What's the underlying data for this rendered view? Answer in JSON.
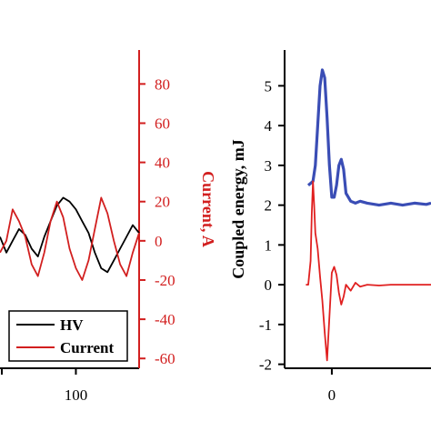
{
  "colors": {
    "hv": "#000000",
    "current": "#d21f1f",
    "coupled_energy": "#3a4db5",
    "second_trace": "#e02020",
    "axis_black": "#000000"
  },
  "chart_data": [
    {
      "type": "line",
      "panel": "left",
      "right_axis": {
        "label": "Current, A",
        "ylim": [
          -65,
          95
        ],
        "ticks": [
          80,
          60,
          40,
          20,
          0,
          -20,
          -40,
          -60
        ],
        "tick_labels": [
          "80",
          "60",
          "40",
          "20",
          "0",
          "-20",
          "-40",
          "-60"
        ],
        "color": "#d21f1f"
      },
      "x_tick_labels": [
        "100"
      ],
      "xlim": [
        40,
        150
      ],
      "legend": {
        "placement": "bottom-right",
        "entries": [
          "HV",
          "Current"
        ]
      },
      "series": [
        {
          "name": "HV",
          "color": "#000000",
          "x": [
            40,
            45,
            50,
            55,
            60,
            65,
            70,
            75,
            80,
            85,
            90,
            95,
            100,
            105,
            110,
            115,
            120,
            125,
            130,
            135,
            140,
            145,
            150
          ],
          "y": [
            2,
            -6,
            0,
            6,
            3,
            -4,
            -8,
            2,
            10,
            18,
            22,
            20,
            16,
            10,
            4,
            -6,
            -14,
            -16,
            -10,
            -4,
            2,
            8,
            4
          ]
        },
        {
          "name": "Current",
          "color": "#d21f1f",
          "x": [
            40,
            45,
            50,
            55,
            60,
            65,
            70,
            75,
            80,
            85,
            90,
            95,
            100,
            105,
            110,
            115,
            120,
            125,
            130,
            135,
            140,
            145,
            150
          ],
          "y": [
            -6,
            0,
            16,
            10,
            2,
            -12,
            -18,
            -6,
            10,
            20,
            12,
            -4,
            -14,
            -20,
            -10,
            6,
            22,
            14,
            0,
            -12,
            -18,
            -6,
            4
          ]
        }
      ]
    },
    {
      "type": "line",
      "panel": "right",
      "ylabel": "Coupled energy, mJ",
      "ylim": [
        -2.1,
        5.9
      ],
      "yticks": [
        5,
        4,
        3,
        2,
        1,
        0,
        -1,
        -2
      ],
      "ytick_labels": [
        "5",
        "4",
        "3",
        "2",
        "1",
        "0",
        "-1",
        "-2"
      ],
      "x_tick_labels": [
        "0"
      ],
      "xlim": [
        -2.0,
        4.2
      ],
      "series": [
        {
          "color": "#3a4db5",
          "x": [
            -1.0,
            -0.8,
            -0.7,
            -0.6,
            -0.5,
            -0.4,
            -0.3,
            -0.2,
            -0.1,
            0.0,
            0.1,
            0.2,
            0.3,
            0.4,
            0.5,
            0.6,
            0.8,
            1.0,
            1.2,
            1.5,
            2.0,
            2.5,
            3.0,
            3.5,
            4.0,
            4.2
          ],
          "y": [
            2.5,
            2.6,
            3.0,
            4.0,
            5.0,
            5.4,
            5.2,
            4.2,
            3.0,
            2.2,
            2.2,
            2.5,
            3.0,
            3.15,
            2.9,
            2.3,
            2.1,
            2.05,
            2.1,
            2.05,
            2.0,
            2.05,
            2.0,
            2.05,
            2.02,
            2.05
          ]
        },
        {
          "color": "#e02020",
          "x": [
            -1.1,
            -1.0,
            -0.9,
            -0.85,
            -0.8,
            -0.75,
            -0.7,
            -0.6,
            -0.5,
            -0.4,
            -0.3,
            -0.2,
            -0.1,
            0.0,
            0.1,
            0.2,
            0.3,
            0.4,
            0.5,
            0.6,
            0.8,
            1.0,
            1.2,
            1.5,
            2.0,
            2.5,
            3.0,
            3.5,
            4.0,
            4.2
          ],
          "y": [
            0.0,
            0.0,
            0.6,
            1.8,
            2.6,
            2.0,
            1.3,
            0.9,
            0.2,
            -0.4,
            -1.2,
            -1.9,
            -0.8,
            0.3,
            0.45,
            0.25,
            -0.2,
            -0.5,
            -0.3,
            0.0,
            -0.15,
            0.05,
            -0.05,
            0.0,
            -0.02,
            0.0,
            0.0,
            0.0,
            0.0,
            0.0
          ]
        }
      ]
    }
  ]
}
